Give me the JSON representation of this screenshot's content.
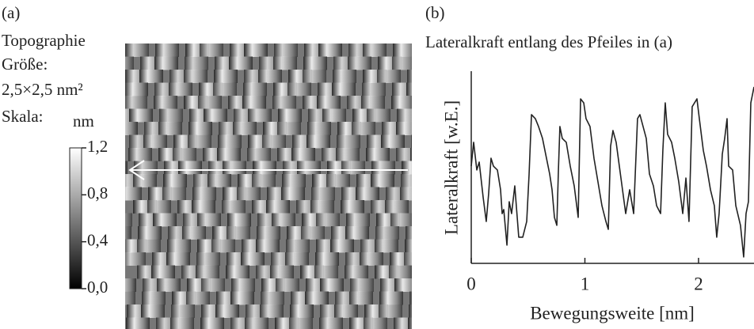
{
  "chart_data": [
    {
      "type": "image",
      "panel_label": "(a)",
      "title": "Topographie",
      "size_label": "Größe:",
      "size": "2,5×2,5 nm²",
      "scale_label": "Skala:",
      "colorbar_label": "nm",
      "clim": [
        0,
        1.2
      ],
      "cticks": [
        {
          "value": 1.2,
          "label": "1,2"
        },
        {
          "value": 0.8,
          "label": "0,8"
        },
        {
          "value": 0.4,
          "label": "0,4"
        },
        {
          "value": 0,
          "label": "0,0"
        }
      ]
    },
    {
      "type": "line",
      "panel_label": "(b)",
      "title": "Lateralkraft entlang des Pfeiles in (a)",
      "xlabel": "Bewegungsweite [nm]",
      "ylabel": "Lateralkraft [w.E.]",
      "color": "#222",
      "xlim": [
        0,
        2.488
      ],
      "ylim": [
        0,
        1
      ],
      "xticks": [
        0,
        1,
        2
      ],
      "x": [
        0,
        0.021,
        0.049,
        0.07,
        0.105,
        0.132,
        0.153,
        0.174,
        0.195,
        0.23,
        0.258,
        0.272,
        0.286,
        0.314,
        0.334,
        0.355,
        0.383,
        0.418,
        0.453,
        0.488,
        0.509,
        0.53,
        0.564,
        0.592,
        0.627,
        0.662,
        0.69,
        0.711,
        0.732,
        0.753,
        0.767,
        0.78,
        0.801,
        0.836,
        0.871,
        0.906,
        0.941,
        0.962,
        0.99,
        1.01,
        1.045,
        1.08,
        1.115,
        1.15,
        1.185,
        1.206,
        1.226,
        1.247,
        1.275,
        1.303,
        1.331,
        1.359,
        1.394,
        1.429,
        1.463,
        1.484,
        1.512,
        1.54,
        1.568,
        1.603,
        1.631,
        1.666,
        1.686,
        1.707,
        1.728,
        1.763,
        1.791,
        1.826,
        1.861,
        1.889,
        1.916,
        1.944,
        1.986,
        2.007,
        2.042,
        2.07,
        2.105,
        2.139,
        2.16,
        2.181,
        2.209,
        2.23,
        2.251,
        2.265,
        2.3,
        2.328,
        2.369,
        2.397,
        2.418,
        2.439,
        2.46,
        2.488
      ],
      "values": [
        0.506,
        0.63,
        0.486,
        0.527,
        0.342,
        0.218,
        0.362,
        0.547,
        0.506,
        0.486,
        0.383,
        0.259,
        0.28,
        0.095,
        0.321,
        0.259,
        0.403,
        0.136,
        0.136,
        0.218,
        0.465,
        0.774,
        0.753,
        0.712,
        0.65,
        0.547,
        0.465,
        0.383,
        0.239,
        0.198,
        0.486,
        0.712,
        0.65,
        0.63,
        0.506,
        0.403,
        0.239,
        0.856,
        0.835,
        0.753,
        0.712,
        0.547,
        0.424,
        0.3,
        0.218,
        0.177,
        0.609,
        0.691,
        0.63,
        0.506,
        0.383,
        0.259,
        0.383,
        0.259,
        0.753,
        0.774,
        0.712,
        0.65,
        0.465,
        0.403,
        0.3,
        0.259,
        0.588,
        0.835,
        0.671,
        0.63,
        0.547,
        0.424,
        0.259,
        0.444,
        0.218,
        0.815,
        0.856,
        0.753,
        0.588,
        0.506,
        0.383,
        0.3,
        0.136,
        0.259,
        0.568,
        0.65,
        0.753,
        0.506,
        0.486,
        0.3,
        0.198,
        0.033,
        0.259,
        0.321,
        0.835,
        0.918
      ]
    }
  ]
}
